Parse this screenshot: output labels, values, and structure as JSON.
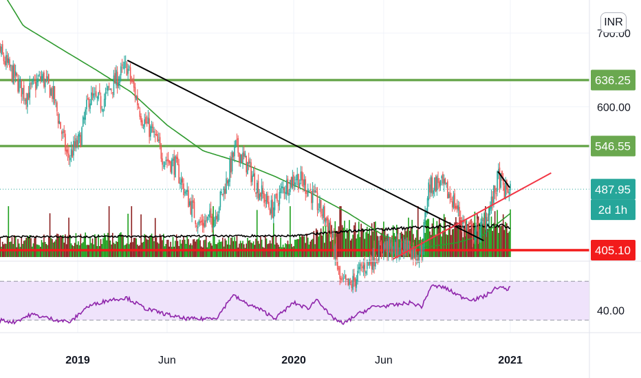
{
  "currency": "INR",
  "colors": {
    "up": "#26a69a",
    "down": "#ef5350",
    "vol_up": "#1b9e1b",
    "vol_down": "#8b1e1e",
    "ma": "#2e9a2e",
    "trend_black": "#000000",
    "trend_red": "#f23645",
    "support": "#f21b1b",
    "resistance": "#6aa84f",
    "rsi": "#8e24aa",
    "rsi_band": "#efe3fb",
    "last_price_line": "#26a69a",
    "tag_green": "#6aa84f",
    "tag_teal": "#26a69a",
    "tag_red": "#f21b1b"
  },
  "chart_data": {
    "type": "candlestick",
    "interval": "2d",
    "price_axis": {
      "range": [
        392,
        745
      ],
      "tick_labels": [
        "700.00",
        "600.00"
      ]
    },
    "price_tags": [
      {
        "name": "resistance-upper",
        "label": "636.25",
        "value": 636.25,
        "style": "green"
      },
      {
        "name": "resistance-lower",
        "label": "546.55",
        "value": 546.55,
        "style": "green"
      },
      {
        "name": "last-price",
        "label": "487.95",
        "value": 487.95,
        "style": "teal"
      },
      {
        "name": "countdown",
        "label": "2d 1h",
        "value": 460,
        "style": "teal"
      },
      {
        "name": "support",
        "label": "405.10",
        "value": 405.1,
        "style": "red"
      }
    ],
    "horizontal_levels": [
      {
        "name": "resistance-upper-line",
        "value": 636.25,
        "color": "resistance"
      },
      {
        "name": "resistance-lower-line",
        "value": 546.55,
        "color": "resistance"
      },
      {
        "name": "support-line",
        "value": 405.1,
        "color": "support"
      }
    ],
    "x_axis": {
      "ticks": [
        {
          "label": "2019",
          "date": "2019-01-01",
          "year": true
        },
        {
          "label": "Jun",
          "date": "2019-06-01",
          "year": false
        },
        {
          "label": "2020",
          "date": "2020-01-01",
          "year": true
        },
        {
          "label": "Jun",
          "date": "2020-06-01",
          "year": false
        },
        {
          "label": "2021",
          "date": "2021-01-01",
          "year": true
        }
      ]
    },
    "trendlines": [
      {
        "name": "downtrend-line",
        "from": [
          "2019-03-26",
          663
        ],
        "to": [
          "2020-11-17",
          418
        ],
        "color": "trend_black"
      },
      {
        "name": "uptrend-line",
        "from": [
          "2020-06-17",
          393
        ],
        "to": [
          "2021-03-11",
          510
        ],
        "color": "trend_red"
      },
      {
        "name": "recent-downtrend-line",
        "from": [
          "2020-12-11",
          512
        ],
        "to": [
          "2020-12-31",
          490
        ],
        "color": "trend_black"
      }
    ],
    "price_keyframes": [
      [
        "2018-08-01",
        705
      ],
      [
        "2018-09-01",
        660
      ],
      [
        "2018-10-05",
        615
      ],
      [
        "2018-11-01",
        640
      ],
      [
        "2018-11-20",
        618
      ],
      [
        "2018-12-15",
        530
      ],
      [
        "2019-01-05",
        555
      ],
      [
        "2019-01-20",
        612
      ],
      [
        "2019-02-10",
        605
      ],
      [
        "2019-03-01",
        630
      ],
      [
        "2019-03-25",
        655
      ],
      [
        "2019-04-20",
        585
      ],
      [
        "2019-05-10",
        560
      ],
      [
        "2019-05-25",
        532
      ],
      [
        "2019-06-15",
        520
      ],
      [
        "2019-07-01",
        485
      ],
      [
        "2019-07-25",
        440
      ],
      [
        "2019-08-20",
        450
      ],
      [
        "2019-09-10",
        500
      ],
      [
        "2019-09-25",
        545
      ],
      [
        "2019-10-15",
        520
      ],
      [
        "2019-11-01",
        490
      ],
      [
        "2019-11-25",
        460
      ],
      [
        "2019-12-15",
        490
      ],
      [
        "2020-01-05",
        505
      ],
      [
        "2020-01-25",
        490
      ],
      [
        "2020-02-15",
        460
      ],
      [
        "2020-03-01",
        440
      ],
      [
        "2020-03-20",
        360
      ],
      [
        "2020-04-05",
        355
      ],
      [
        "2020-04-25",
        380
      ],
      [
        "2020-05-15",
        395
      ],
      [
        "2020-06-01",
        410
      ],
      [
        "2020-06-20",
        405
      ],
      [
        "2020-07-10",
        412
      ],
      [
        "2020-07-25",
        400
      ],
      [
        "2020-08-05",
        405
      ],
      [
        "2020-08-15",
        490
      ],
      [
        "2020-09-01",
        498
      ],
      [
        "2020-09-25",
        475
      ],
      [
        "2020-10-15",
        440
      ],
      [
        "2020-11-01",
        425
      ],
      [
        "2020-11-15",
        437
      ],
      [
        "2020-12-01",
        470
      ],
      [
        "2020-12-12",
        505
      ],
      [
        "2020-12-22",
        485
      ],
      [
        "2021-01-01",
        490
      ]
    ],
    "ma_keyframes": [
      [
        "2018-08-01",
        790
      ],
      [
        "2018-10-01",
        710
      ],
      [
        "2018-12-01",
        680
      ],
      [
        "2019-02-01",
        650
      ],
      [
        "2019-04-01",
        620
      ],
      [
        "2019-06-01",
        575
      ],
      [
        "2019-08-01",
        540
      ],
      [
        "2019-10-01",
        525
      ],
      [
        "2019-12-01",
        505
      ],
      [
        "2020-02-01",
        482
      ],
      [
        "2020-04-01",
        456
      ],
      [
        "2020-06-01",
        425
      ],
      [
        "2020-08-01",
        408
      ],
      [
        "2020-10-01",
        415
      ],
      [
        "2020-11-15",
        425
      ],
      [
        "2021-01-01",
        455
      ]
    ],
    "volume_keyframes": [
      [
        "2018-08-01",
        0.3
      ],
      [
        "2018-12-15",
        0.35
      ],
      [
        "2019-03-25",
        0.35
      ],
      [
        "2019-08-01",
        0.3
      ],
      [
        "2020-01-01",
        0.3
      ],
      [
        "2020-03-20",
        0.55
      ],
      [
        "2020-06-01",
        0.5
      ],
      [
        "2020-08-15",
        0.55
      ],
      [
        "2020-12-15",
        0.7
      ],
      [
        "2021-01-01",
        0.4
      ]
    ],
    "volume_ma_keyframes": [
      [
        "2018-08-01",
        0.4
      ],
      [
        "2019-01-01",
        0.4
      ],
      [
        "2020-01-01",
        0.42
      ],
      [
        "2020-03-20",
        0.5
      ],
      [
        "2020-06-01",
        0.55
      ],
      [
        "2020-09-01",
        0.6
      ],
      [
        "2020-12-20",
        0.62
      ],
      [
        "2021-01-01",
        0.55
      ]
    ],
    "rsi": {
      "range": [
        20,
        85
      ],
      "bands": [
        30,
        70
      ],
      "tick_labels": [
        "40.00"
      ],
      "keyframes": [
        [
          "2018-08-01",
          32
        ],
        [
          "2018-09-15",
          28
        ],
        [
          "2018-10-15",
          36
        ],
        [
          "2018-11-20",
          31
        ],
        [
          "2018-12-20",
          28
        ],
        [
          "2019-01-15",
          43
        ],
        [
          "2019-02-01",
          47
        ],
        [
          "2019-02-25",
          51
        ],
        [
          "2019-03-25",
          53
        ],
        [
          "2019-04-25",
          42
        ],
        [
          "2019-05-25",
          37
        ],
        [
          "2019-06-25",
          32
        ],
        [
          "2019-07-25",
          31
        ],
        [
          "2019-08-25",
          33
        ],
        [
          "2019-09-20",
          56
        ],
        [
          "2019-10-10",
          48
        ],
        [
          "2019-11-05",
          41
        ],
        [
          "2019-12-01",
          32
        ],
        [
          "2020-01-01",
          48
        ],
        [
          "2020-01-25",
          42
        ],
        [
          "2020-02-10",
          52
        ],
        [
          "2020-03-01",
          35
        ],
        [
          "2020-03-25",
          26
        ],
        [
          "2020-04-15",
          35
        ],
        [
          "2020-05-15",
          44
        ],
        [
          "2020-06-15",
          45
        ],
        [
          "2020-07-15",
          48
        ],
        [
          "2020-08-05",
          44
        ],
        [
          "2020-08-20",
          65
        ],
        [
          "2020-09-10",
          64
        ],
        [
          "2020-10-10",
          54
        ],
        [
          "2020-11-01",
          51
        ],
        [
          "2020-11-20",
          55
        ],
        [
          "2020-12-10",
          64
        ],
        [
          "2020-12-25",
          62
        ],
        [
          "2021-01-01",
          63
        ]
      ]
    }
  }
}
